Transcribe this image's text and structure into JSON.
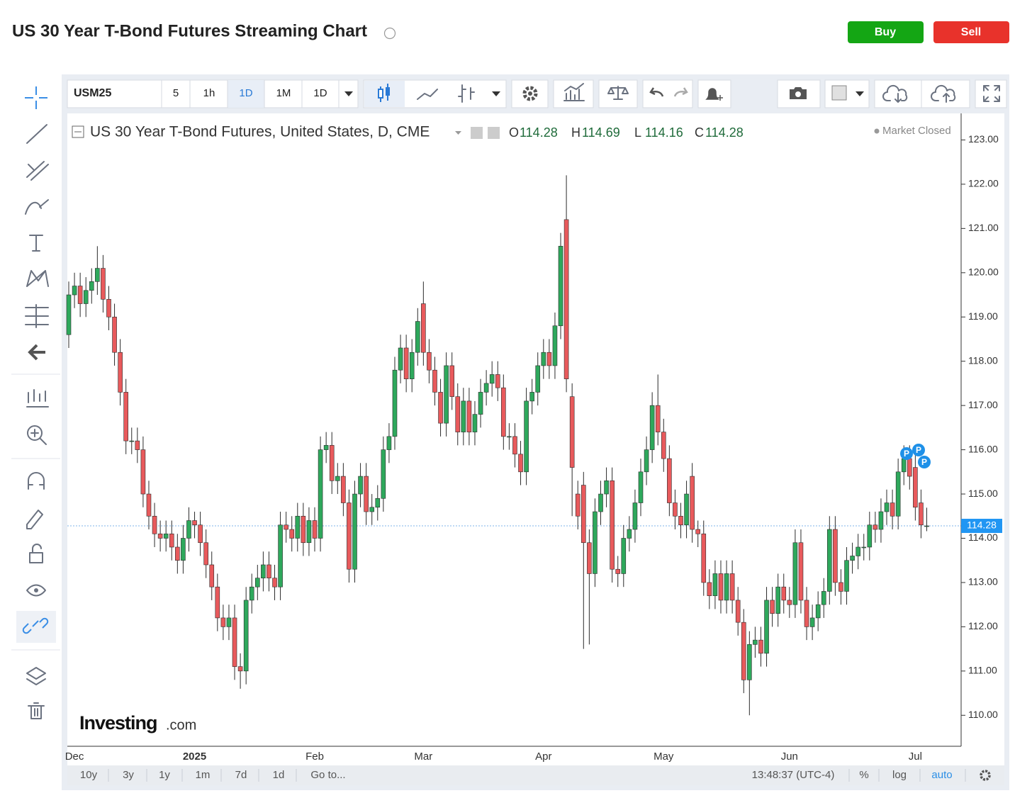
{
  "header": {
    "title": "US 30 Year T-Bond Futures Streaming Chart",
    "buy": "Buy",
    "sell": "Sell"
  },
  "toolbar": {
    "symbol": "USM25",
    "intervals": [
      "5",
      "1h",
      "1D",
      "1M",
      "1D"
    ]
  },
  "legend": {
    "title": "US 30 Year T-Bond Futures, United States, D, CME",
    "ohlc_labels": [
      "O",
      "H",
      "L",
      "C"
    ],
    "status": "Market Closed"
  },
  "logo": {
    "brand": "Investing",
    "suffix": ".com"
  },
  "bottom_bar": {
    "ranges": [
      "10y",
      "3y",
      "1y",
      "1m",
      "7d",
      "1d"
    ],
    "goto": "Go to...",
    "time": "13:48:37 (UTC-4)",
    "options": [
      "%",
      "log",
      "auto"
    ]
  },
  "chart_data": {
    "type": "candlestick",
    "categories": [
      null,
      "Dec",
      null,
      null,
      null,
      null,
      null,
      null,
      null,
      null,
      null,
      null,
      null,
      null,
      null,
      null,
      null,
      null,
      null,
      null,
      null,
      null,
      "2025",
      null,
      null,
      null,
      null,
      null,
      null,
      null,
      null,
      null,
      null,
      null,
      null,
      null,
      null,
      null,
      null,
      null,
      null,
      null,
      null,
      "Feb",
      null,
      null,
      null,
      null,
      null,
      null,
      null,
      null,
      null,
      null,
      null,
      null,
      null,
      null,
      null,
      null,
      null,
      null,
      "Mar",
      null,
      null,
      null,
      null,
      null,
      null,
      null,
      null,
      null,
      null,
      null,
      null,
      null,
      null,
      null,
      null,
      null,
      null,
      null,
      null,
      "Apr",
      null,
      null,
      null,
      null,
      null,
      null,
      null,
      null,
      null,
      null,
      null,
      null,
      null,
      null,
      null,
      null,
      null,
      null,
      null,
      null,
      "May",
      null,
      null,
      null,
      null,
      null,
      null,
      null,
      null,
      null,
      null,
      null,
      null,
      null,
      null,
      null,
      null,
      null,
      null,
      null,
      null,
      null,
      "Jun",
      null,
      null,
      null,
      null,
      null,
      null,
      null,
      null,
      null,
      null,
      null,
      null,
      null,
      null,
      null,
      null,
      null,
      null,
      null,
      null,
      null,
      "Jul",
      null,
      null
    ],
    "open": [
      118.6,
      119.5,
      119.7,
      119.3,
      119.6,
      119.8,
      120.1,
      119.4,
      119.0,
      118.2,
      117.3,
      116.2,
      116.2,
      116.0,
      115.0,
      114.5,
      114.1,
      114.0,
      114.1,
      113.8,
      113.5,
      114.0,
      114.4,
      114.3,
      113.9,
      113.4,
      112.9,
      112.2,
      112.0,
      112.2,
      111.1,
      111.0,
      112.6,
      112.9,
      113.1,
      113.4,
      113.1,
      112.9,
      114.3,
      114.2,
      114.0,
      114.5,
      113.9,
      114.4,
      114.0,
      116.0,
      116.1,
      115.3,
      115.4,
      114.8,
      113.3,
      115.0,
      115.4,
      114.6,
      114.7,
      114.9,
      116.0,
      116.3,
      117.8,
      118.3,
      117.6,
      118.2,
      119.3,
      118.2,
      117.8,
      117.3,
      116.6,
      117.9,
      117.2,
      116.4,
      117.1,
      116.4,
      116.8,
      117.3,
      117.5,
      117.7,
      117.4,
      116.3,
      116.3,
      115.9,
      115.5,
      117.1,
      117.3,
      117.9,
      118.2,
      117.9,
      118.8,
      121.2,
      117.2,
      115.0,
      115.2,
      113.9,
      113.2,
      114.6,
      115.0,
      115.3,
      113.3,
      113.2,
      114.0,
      114.2,
      114.8,
      115.5,
      116.0,
      117.0,
      116.4,
      115.8,
      114.8,
      114.5,
      114.3,
      115.4,
      114.2,
      114.1,
      113.0,
      112.7,
      113.2,
      112.6,
      113.2,
      112.6,
      112.1,
      110.8,
      111.6,
      111.7,
      111.4,
      112.6,
      112.3,
      112.9,
      112.6,
      112.5,
      113.9,
      112.6,
      112.0,
      112.2,
      112.5,
      112.8,
      114.2,
      113.0,
      112.8,
      113.5,
      113.6,
      113.8,
      113.8,
      114.3,
      114.2,
      114.6,
      114.8,
      114.5,
      115.5,
      115.8,
      115.6,
      114.8,
      114.28
    ],
    "high": [
      119.8,
      120.0,
      120.0,
      119.9,
      120.1,
      120.6,
      120.4,
      119.7,
      119.3,
      118.5,
      117.6,
      116.5,
      116.5,
      116.3,
      115.3,
      114.8,
      114.4,
      114.4,
      114.4,
      114.1,
      114.3,
      114.7,
      114.6,
      114.6,
      114.2,
      113.7,
      113.2,
      112.5,
      112.5,
      112.5,
      111.4,
      112.9,
      113.2,
      113.4,
      113.7,
      113.7,
      113.4,
      114.6,
      114.6,
      114.5,
      114.8,
      114.8,
      114.7,
      114.7,
      116.3,
      116.4,
      116.4,
      115.7,
      115.7,
      115.1,
      115.3,
      115.7,
      115.7,
      115.0,
      115.2,
      116.3,
      116.6,
      118.1,
      118.6,
      118.6,
      118.5,
      119.2,
      119.8,
      118.5,
      118.1,
      117.6,
      118.2,
      118.2,
      117.5,
      117.4,
      117.4,
      117.1,
      117.6,
      117.8,
      118.0,
      118.0,
      117.7,
      116.6,
      116.6,
      116.2,
      117.4,
      117.6,
      118.2,
      118.5,
      118.5,
      119.1,
      120.9,
      122.2,
      117.5,
      115.3,
      115.5,
      114.2,
      114.9,
      115.3,
      115.6,
      115.6,
      113.6,
      114.3,
      114.5,
      115.1,
      115.8,
      116.3,
      117.3,
      117.7,
      116.7,
      116.1,
      115.1,
      114.8,
      115.3,
      115.7,
      114.4,
      114.4,
      113.3,
      113.5,
      113.5,
      113.5,
      113.5,
      112.9,
      112.4,
      111.9,
      112.0,
      112.0,
      112.9,
      112.9,
      113.2,
      113.2,
      112.9,
      114.2,
      114.2,
      112.9,
      112.5,
      112.8,
      113.1,
      114.5,
      114.5,
      113.3,
      113.8,
      113.9,
      114.1,
      114.1,
      114.6,
      114.6,
      114.9,
      115.1,
      115.1,
      115.8,
      116.1,
      116.1,
      115.9,
      115.1,
      114.69
    ],
    "low": [
      118.3,
      119.2,
      119.0,
      119.0,
      119.3,
      119.5,
      119.1,
      118.7,
      117.9,
      117.0,
      115.9,
      115.9,
      115.7,
      114.7,
      114.2,
      113.8,
      113.7,
      113.7,
      113.5,
      113.2,
      113.2,
      113.7,
      114.0,
      113.6,
      113.1,
      112.6,
      111.9,
      111.7,
      111.7,
      110.8,
      110.6,
      110.7,
      112.3,
      112.6,
      112.8,
      112.8,
      112.6,
      112.6,
      113.9,
      113.7,
      113.7,
      113.6,
      113.6,
      113.7,
      113.7,
      115.7,
      115.0,
      115.0,
      114.5,
      113.0,
      113.0,
      114.7,
      114.3,
      114.3,
      114.4,
      114.6,
      115.7,
      116.0,
      117.5,
      117.3,
      117.3,
      117.9,
      117.9,
      117.5,
      117.0,
      116.3,
      116.3,
      116.9,
      116.1,
      116.1,
      116.1,
      116.1,
      116.5,
      117.0,
      117.2,
      117.1,
      116.0,
      116.0,
      115.6,
      115.2,
      115.2,
      116.8,
      117.0,
      117.6,
      117.6,
      117.6,
      118.5,
      117.3,
      114.5,
      114.2,
      111.5,
      111.6,
      112.9,
      114.3,
      114.7,
      113.0,
      112.9,
      112.9,
      113.7,
      113.9,
      114.5,
      115.2,
      115.7,
      116.1,
      115.5,
      114.5,
      114.2,
      114.0,
      114.0,
      113.9,
      113.8,
      112.7,
      112.4,
      112.4,
      112.3,
      112.3,
      112.3,
      111.8,
      110.5,
      110.0,
      111.3,
      111.1,
      111.1,
      112.0,
      112.0,
      112.3,
      112.2,
      112.2,
      112.3,
      111.7,
      111.7,
      111.9,
      112.2,
      112.5,
      112.7,
      112.5,
      112.5,
      113.2,
      113.3,
      113.5,
      113.5,
      113.9,
      113.9,
      114.3,
      114.2,
      114.2,
      115.2,
      115.1,
      114.4,
      114.0,
      114.16
    ],
    "close": [
      119.5,
      119.7,
      119.3,
      119.6,
      119.8,
      120.1,
      119.4,
      119.0,
      118.2,
      117.3,
      116.2,
      116.2,
      116.0,
      115.0,
      114.5,
      114.1,
      114.0,
      114.1,
      113.8,
      113.5,
      114.0,
      114.4,
      114.3,
      113.9,
      113.4,
      112.9,
      112.2,
      112.0,
      112.2,
      111.1,
      111.0,
      112.6,
      112.9,
      113.1,
      113.4,
      113.1,
      112.9,
      114.3,
      114.2,
      114.0,
      114.5,
      113.9,
      114.4,
      114.0,
      116.0,
      116.1,
      115.3,
      115.4,
      114.8,
      113.3,
      115.0,
      115.4,
      114.6,
      114.7,
      114.9,
      116.0,
      116.3,
      117.8,
      118.3,
      117.6,
      118.2,
      118.9,
      118.2,
      117.8,
      117.3,
      116.6,
      117.9,
      117.2,
      116.4,
      117.1,
      116.4,
      116.8,
      117.3,
      117.5,
      117.7,
      117.4,
      116.3,
      116.3,
      115.9,
      115.5,
      117.1,
      117.3,
      117.9,
      118.2,
      117.9,
      118.8,
      120.6,
      117.6,
      115.6,
      114.5,
      113.9,
      113.2,
      114.6,
      115.0,
      115.3,
      113.3,
      113.2,
      114.0,
      114.2,
      114.8,
      115.5,
      116.0,
      117.0,
      116.4,
      115.8,
      114.8,
      114.5,
      114.3,
      115.0,
      114.2,
      114.1,
      113.0,
      112.7,
      113.2,
      112.6,
      113.2,
      112.6,
      112.1,
      110.8,
      111.6,
      111.7,
      111.4,
      112.6,
      112.3,
      112.9,
      112.6,
      112.5,
      113.9,
      112.6,
      112.0,
      112.2,
      112.5,
      112.8,
      114.2,
      113.0,
      112.8,
      113.5,
      113.6,
      113.8,
      113.8,
      114.3,
      114.2,
      114.6,
      114.8,
      114.5,
      115.5,
      115.8,
      115.4,
      114.7,
      114.3,
      114.28
    ],
    "up_color": "#2ea85c",
    "down_color": "#e85a5c",
    "ylim": [
      109.3,
      123.6
    ],
    "yticks": [
      {
        "value": 110,
        "label": "110.00"
      },
      {
        "value": 111,
        "label": "111.00"
      },
      {
        "value": 112,
        "label": "112.00"
      },
      {
        "value": 113,
        "label": "113.00"
      },
      {
        "value": 114,
        "label": "114.00"
      },
      {
        "value": 115,
        "label": "115.00"
      },
      {
        "value": 116,
        "label": "116.00"
      },
      {
        "value": 117,
        "label": "117.00"
      },
      {
        "value": 118,
        "label": "118.00"
      },
      {
        "value": 119,
        "label": "119.00"
      },
      {
        "value": 120,
        "label": "120.00"
      },
      {
        "value": 121,
        "label": "121.00"
      },
      {
        "value": 122,
        "label": "122.00"
      },
      {
        "value": 123,
        "label": "123.00"
      }
    ],
    "grid": false
  }
}
